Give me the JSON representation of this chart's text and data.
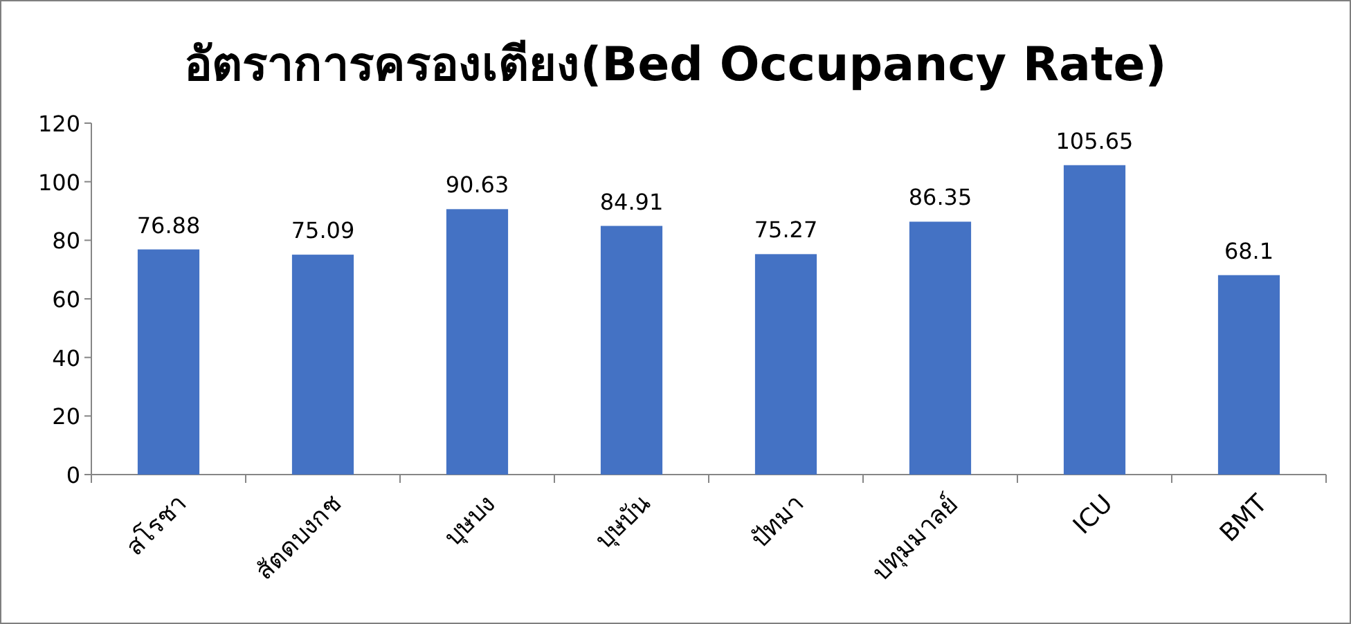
{
  "chart_data": {
    "type": "bar",
    "title": "อัตราการครองเตียง(Bed Occupancy Rate)",
    "categories": [
      "สโรชา",
      "สัตดบงกช",
      "บุษบง",
      "บุษบัน",
      "ปัทมา",
      "ปทุมมาลย์",
      "ICU",
      "BMT"
    ],
    "values": [
      76.88,
      75.09,
      90.63,
      84.91,
      75.27,
      86.35,
      105.65,
      68.1
    ],
    "color": "#4472c4",
    "ylim": [
      0,
      120
    ],
    "yticks": [
      0,
      20,
      40,
      60,
      80,
      100,
      120
    ],
    "data_labels": true,
    "grid": false
  }
}
